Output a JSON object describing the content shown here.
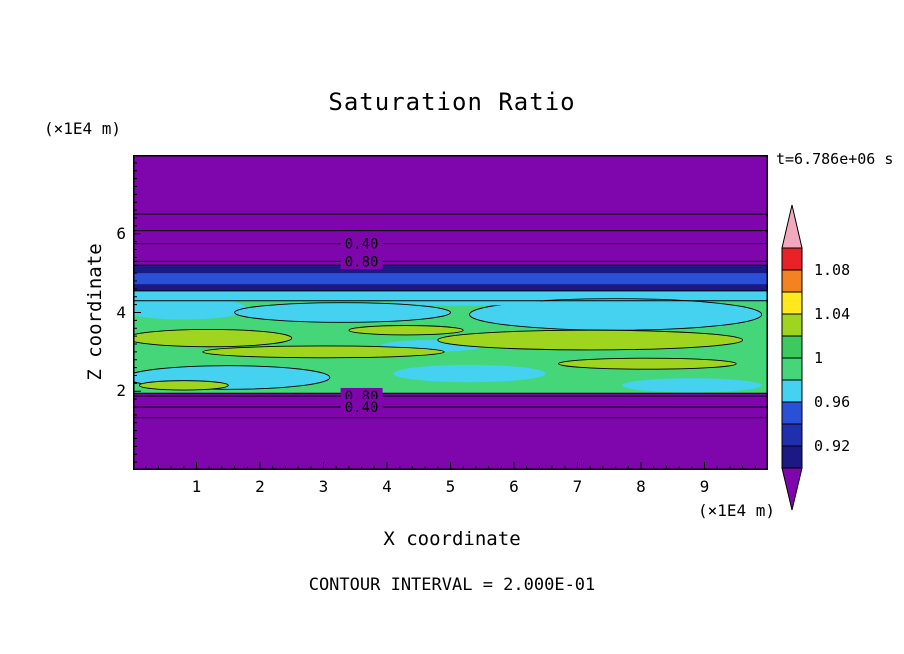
{
  "chart_data": {
    "type": "heatmap",
    "title": "Saturation Ratio",
    "xlabel": "X coordinate",
    "ylabel": "Z coordinate",
    "x_units": "(×1E4 m)",
    "z_units": "(×1E4 m)",
    "time": "t=6.786e+06 s",
    "contour_interval_text": "CONTOUR INTERVAL = 2.000E-01",
    "xlim": [
      0,
      10
    ],
    "zlim": [
      0,
      8
    ],
    "x_ticks": [
      1,
      2,
      3,
      4,
      5,
      6,
      7,
      8,
      9
    ],
    "z_ticks": [
      2,
      4,
      6
    ],
    "field_background": "#7f05ad",
    "frame_color": "#000000",
    "bands": [
      {
        "name": "green-main-band",
        "color": "#45d67a",
        "z0": 1.95,
        "z1": 4.3
      },
      {
        "name": "cyan-strip",
        "color": "#44d2f0",
        "z0": 4.3,
        "z1": 4.55
      },
      {
        "name": "navy-band",
        "color": "#1b1a85",
        "z0": 4.55,
        "z1": 5.2
      },
      {
        "name": "blue-stripe",
        "color": "#2a50d8",
        "z0": 4.72,
        "z1": 5.0
      }
    ],
    "blobs": [
      {
        "color": "#44d2f0",
        "cx": 0.8,
        "cz": 4.1,
        "rx": 1.0,
        "rz": 0.28,
        "outline": false
      },
      {
        "color": "#44d2f0",
        "cx": 3.3,
        "cz": 4.0,
        "rx": 1.7,
        "rz": 0.25,
        "outline": true
      },
      {
        "color": "#44d2f0",
        "cx": 7.6,
        "cz": 3.95,
        "rx": 2.3,
        "rz": 0.4,
        "outline": true
      },
      {
        "color": "#44d2f0",
        "cx": 5.2,
        "cz": 4.35,
        "rx": 1.3,
        "rz": 0.18,
        "outline": false
      },
      {
        "color": "#44d2f0",
        "cx": 1.5,
        "cz": 2.35,
        "rx": 1.6,
        "rz": 0.3,
        "outline": true
      },
      {
        "color": "#44d2f0",
        "cx": 5.3,
        "cz": 2.45,
        "rx": 1.2,
        "rz": 0.22,
        "outline": false
      },
      {
        "color": "#44d2f0",
        "cx": 8.8,
        "cz": 2.15,
        "rx": 1.1,
        "rz": 0.18,
        "outline": false
      },
      {
        "color": "#44d2f0",
        "cx": 4.7,
        "cz": 3.15,
        "rx": 0.8,
        "rz": 0.15,
        "outline": false
      },
      {
        "color": "#9fd41f",
        "cx": 1.2,
        "cz": 3.35,
        "rx": 1.3,
        "rz": 0.22,
        "outline": true
      },
      {
        "color": "#9fd41f",
        "cx": 3.0,
        "cz": 3.0,
        "rx": 1.9,
        "rz": 0.15,
        "outline": true
      },
      {
        "color": "#9fd41f",
        "cx": 7.2,
        "cz": 3.3,
        "rx": 2.4,
        "rz": 0.25,
        "outline": true
      },
      {
        "color": "#9fd41f",
        "cx": 8.1,
        "cz": 2.7,
        "rx": 1.4,
        "rz": 0.14,
        "outline": true
      },
      {
        "color": "#9fd41f",
        "cx": 0.8,
        "cz": 2.15,
        "rx": 0.7,
        "rz": 0.12,
        "outline": true
      },
      {
        "color": "#9fd41f",
        "cx": 4.3,
        "cz": 3.55,
        "rx": 0.9,
        "rz": 0.12,
        "outline": true
      }
    ],
    "band_edge_lines": [
      1.95,
      4.3,
      4.55,
      5.2
    ],
    "contour_lines": [
      6.5,
      6.08,
      5.75,
      5.3,
      1.88,
      1.6,
      1.33
    ],
    "contour_labels": [
      {
        "text": "0.40",
        "x": 3.6,
        "z": 5.75
      },
      {
        "text": "0.80",
        "x": 3.6,
        "z": 5.3
      },
      {
        "text": "0.80",
        "x": 3.6,
        "z": 1.88
      },
      {
        "text": "0.40",
        "x": 3.6,
        "z": 1.6
      }
    ],
    "colorbar": {
      "labels": [
        "1.08",
        "1.04",
        "1",
        "0.96",
        "0.92"
      ],
      "segment_colors": [
        "#e82228",
        "#f58220",
        "#ffe81e",
        "#9fd41f",
        "#3cc95e",
        "#45d67a",
        "#44d2f0",
        "#2a50d8",
        "#1f2fae",
        "#1b1a85"
      ],
      "arrow_top_color": "#f2a8bd",
      "arrow_bottom_color": "#7f05ad"
    }
  }
}
